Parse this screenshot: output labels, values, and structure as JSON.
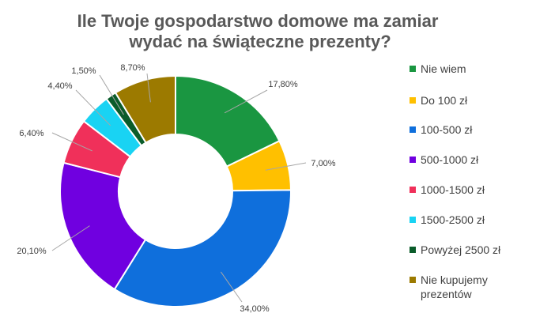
{
  "chart_data": {
    "type": "pie",
    "title_lines": [
      "Ile  Twoje gospodarstwo domowe ma zamiar",
      "wydać na świąteczne prezenty?"
    ],
    "categories": [
      "Nie wiem",
      "Do 100 zł",
      "100-500 zł",
      "500-1000 zł",
      "1000-1500 zł",
      "1500-2500 zł",
      "Powyżej 2500 zł",
      "Nie kupujemy\nprezentów"
    ],
    "values": [
      17.8,
      7.0,
      34.0,
      20.1,
      6.4,
      4.4,
      1.5,
      8.7
    ],
    "value_labels": [
      "17,80%",
      "7,00%",
      "34,00%",
      "20,10%",
      "6,40%",
      "4,40%",
      "1,50%",
      "8,70%"
    ],
    "colors": [
      "#1a9641",
      "#ffc000",
      "#0f6fdc",
      "#7000e0",
      "#f0305a",
      "#19d3f3",
      "#0a5c2a",
      "#9c7a00"
    ],
    "donut": true,
    "legend_position": "right"
  }
}
